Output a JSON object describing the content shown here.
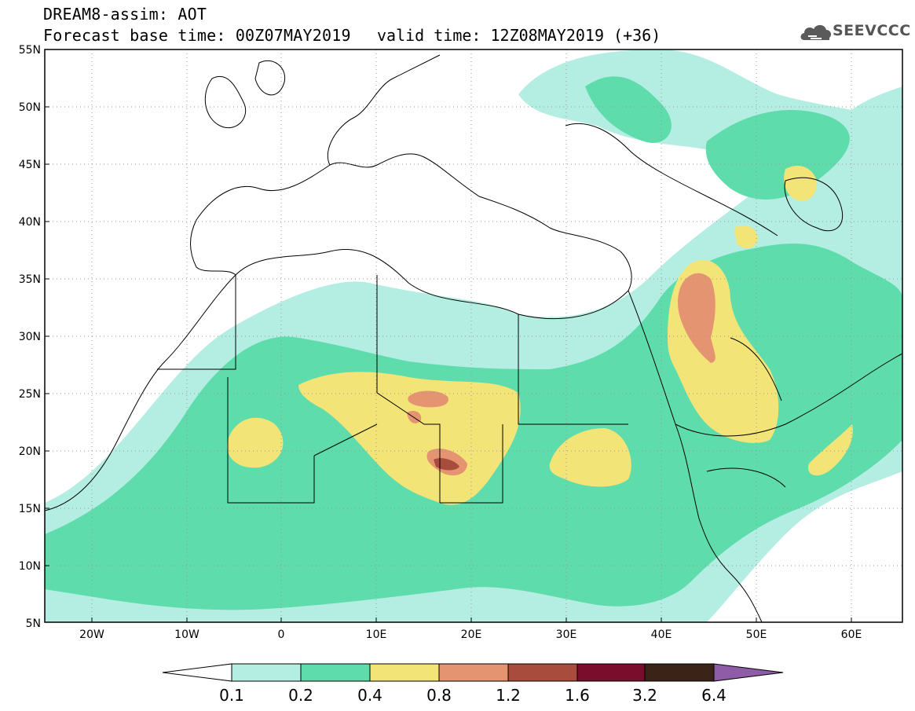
{
  "header": {
    "title": "DREAM8-assim: AOT",
    "base_time": "Forecast base time: 00Z07MAY2019",
    "valid_time": "valid time: 12Z08MAY2019 (+36)",
    "logo_text": "SEEVCCC",
    "logo_icon": "cloud-icon"
  },
  "map": {
    "projection": "lat-lon",
    "lon_range": [
      -25,
      65
    ],
    "lat_range": [
      5,
      55
    ],
    "lon_ticks": [
      "20W",
      "10W",
      "0",
      "10E",
      "20E",
      "30E",
      "40E",
      "50E",
      "60E"
    ],
    "lat_ticks": [
      "55N",
      "50N",
      "45N",
      "40N",
      "35N",
      "30N",
      "25N",
      "20N",
      "15N",
      "10N",
      "5N"
    ],
    "grid": "dotted"
  },
  "colorbar": {
    "levels": [
      "0.1",
      "0.2",
      "0.4",
      "0.8",
      "1.2",
      "1.6",
      "3.2",
      "6.4"
    ],
    "colors": [
      "#b4eee2",
      "#5edcac",
      "#f3e478",
      "#e59471",
      "#a84c3e",
      "#7a0c2c",
      "#3c2318"
    ],
    "over_color": "#8f5ca8",
    "under_color": "#ffffff"
  }
}
